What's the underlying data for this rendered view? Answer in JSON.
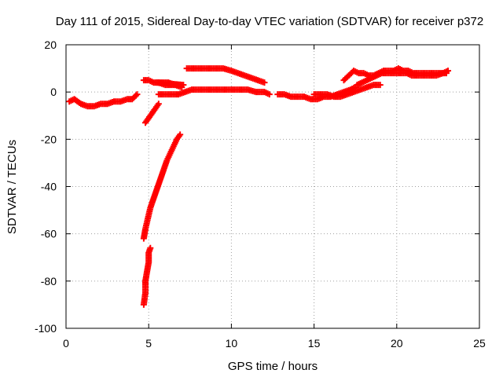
{
  "chart_data": {
    "type": "scatter",
    "title": "Day 111 of 2015, Sidereal Day-to-day VTEC variation (SDTVAR) for receiver p372",
    "xlabel": "GPS time / hours",
    "ylabel": "SDTVAR / TECUs",
    "xlim": [
      0,
      25
    ],
    "ylim": [
      -100,
      20
    ],
    "x_ticks": [
      0,
      5,
      10,
      15,
      20,
      25
    ],
    "y_ticks": [
      -100,
      -80,
      -60,
      -40,
      -20,
      0,
      20
    ],
    "x_tick_labels": [
      "0",
      "5",
      "10",
      "15",
      "20",
      "25"
    ],
    "y_tick_labels": [
      "-100",
      "-80",
      "-60",
      "-40",
      "-20",
      "0",
      "20"
    ],
    "grid": true,
    "marker": "+",
    "color": "#ff0000",
    "series": [
      {
        "points": [
          [
            0.2,
            -4
          ],
          [
            0.5,
            -3
          ],
          [
            0.9,
            -5
          ],
          [
            1.3,
            -6
          ],
          [
            1.7,
            -6
          ],
          [
            2.1,
            -5
          ],
          [
            2.5,
            -5
          ],
          [
            2.9,
            -4
          ],
          [
            3.3,
            -4
          ],
          [
            3.7,
            -3
          ],
          [
            4.0,
            -3
          ],
          [
            4.3,
            -1
          ]
        ]
      },
      {
        "points": [
          [
            4.8,
            -13
          ],
          [
            5.1,
            -10
          ],
          [
            5.4,
            -7
          ],
          [
            5.6,
            -5
          ]
        ]
      },
      {
        "points": [
          [
            4.7,
            -62
          ],
          [
            4.8,
            -58
          ],
          [
            4.9,
            -55
          ],
          [
            5.0,
            -52
          ],
          [
            5.1,
            -49
          ],
          [
            5.3,
            -45
          ],
          [
            5.5,
            -41
          ],
          [
            5.7,
            -37
          ],
          [
            5.9,
            -33
          ],
          [
            6.1,
            -29
          ],
          [
            6.3,
            -26
          ],
          [
            6.5,
            -23
          ],
          [
            6.7,
            -20
          ],
          [
            6.9,
            -18
          ]
        ]
      },
      {
        "points": [
          [
            4.7,
            -90
          ],
          [
            4.8,
            -85
          ],
          [
            4.8,
            -80
          ],
          [
            4.9,
            -76
          ],
          [
            5.0,
            -72
          ],
          [
            5.0,
            -68
          ],
          [
            5.1,
            -66
          ]
        ]
      },
      {
        "points": [
          [
            4.7,
            5
          ],
          [
            5.0,
            5
          ],
          [
            5.3,
            4
          ],
          [
            5.6,
            4
          ],
          [
            6.0,
            3
          ],
          [
            6.4,
            3
          ],
          [
            6.8,
            3
          ],
          [
            7.1,
            3
          ],
          [
            5.5,
            4
          ],
          [
            6.2,
            4
          ],
          [
            7.0,
            2
          ]
        ]
      },
      {
        "points": [
          [
            5.6,
            -1
          ],
          [
            6.0,
            -1
          ],
          [
            6.4,
            -1
          ],
          [
            6.8,
            -1
          ],
          [
            7.2,
            0
          ],
          [
            7.6,
            1
          ],
          [
            8.0,
            1
          ],
          [
            8.5,
            1
          ],
          [
            9.0,
            1
          ],
          [
            9.5,
            1
          ],
          [
            10.0,
            1
          ],
          [
            10.5,
            1
          ],
          [
            11.0,
            1
          ],
          [
            11.5,
            0
          ],
          [
            12.0,
            0
          ],
          [
            12.3,
            -1
          ]
        ]
      },
      {
        "points": [
          [
            7.3,
            10
          ],
          [
            7.7,
            10
          ],
          [
            8.1,
            10
          ],
          [
            8.5,
            10
          ],
          [
            9.0,
            10
          ],
          [
            9.5,
            10
          ],
          [
            10.0,
            9
          ],
          [
            10.4,
            8
          ],
          [
            10.8,
            7
          ],
          [
            11.2,
            6
          ],
          [
            11.6,
            5
          ],
          [
            12.0,
            4
          ]
        ]
      },
      {
        "points": [
          [
            12.8,
            -1
          ],
          [
            13.2,
            -1
          ],
          [
            13.6,
            -2
          ],
          [
            14.0,
            -2
          ],
          [
            14.4,
            -2
          ],
          [
            14.8,
            -3
          ],
          [
            15.2,
            -3
          ],
          [
            15.6,
            -2
          ],
          [
            16.0,
            -2
          ],
          [
            16.4,
            -1
          ],
          [
            16.8,
            0
          ],
          [
            17.2,
            1
          ],
          [
            17.5,
            2
          ]
        ]
      },
      {
        "points": [
          [
            15.0,
            -1
          ],
          [
            15.4,
            -1
          ],
          [
            15.8,
            -1
          ],
          [
            16.2,
            -2
          ],
          [
            16.6,
            -2
          ],
          [
            17.0,
            -1
          ],
          [
            17.4,
            0
          ],
          [
            17.8,
            1
          ],
          [
            18.2,
            2
          ],
          [
            18.6,
            3
          ],
          [
            19.0,
            3
          ]
        ]
      },
      {
        "points": [
          [
            16.8,
            5
          ],
          [
            17.1,
            7
          ],
          [
            17.4,
            9
          ],
          [
            17.7,
            8
          ],
          [
            18.0,
            8
          ],
          [
            18.3,
            7
          ],
          [
            18.6,
            7
          ],
          [
            18.9,
            8
          ],
          [
            19.2,
            9
          ],
          [
            19.5,
            9
          ],
          [
            19.8,
            9
          ],
          [
            20.1,
            10
          ],
          [
            20.4,
            9
          ],
          [
            20.7,
            9
          ],
          [
            21.0,
            8
          ],
          [
            21.3,
            8
          ],
          [
            21.6,
            8
          ],
          [
            22.0,
            8
          ],
          [
            22.4,
            8
          ],
          [
            22.8,
            8
          ],
          [
            23.1,
            9
          ]
        ]
      },
      {
        "points": [
          [
            17.6,
            3
          ],
          [
            17.9,
            4
          ],
          [
            18.2,
            5
          ],
          [
            18.5,
            6
          ],
          [
            18.8,
            7
          ],
          [
            19.1,
            8
          ],
          [
            19.4,
            8
          ],
          [
            19.7,
            8
          ],
          [
            20.0,
            8
          ],
          [
            20.3,
            8
          ],
          [
            20.6,
            8
          ],
          [
            20.9,
            7
          ],
          [
            21.2,
            7
          ],
          [
            21.6,
            7
          ],
          [
            22.0,
            7
          ],
          [
            22.4,
            7
          ],
          [
            22.8,
            8
          ],
          [
            23.0,
            8
          ]
        ]
      }
    ]
  }
}
